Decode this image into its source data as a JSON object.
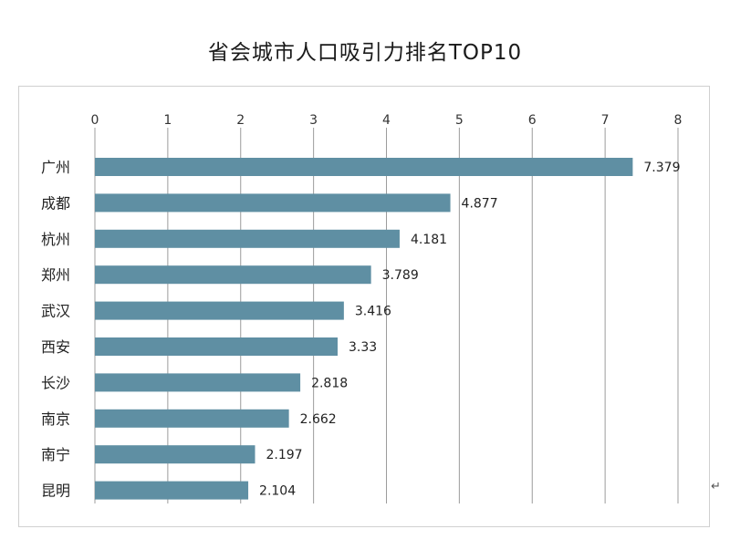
{
  "chart_data": {
    "type": "bar",
    "orientation": "horizontal",
    "title": "省会城市人口吸引力排名TOP10",
    "xlabel": "",
    "ylabel": "",
    "xlim": [
      0,
      8
    ],
    "x_ticks": [
      "0",
      "1",
      "2",
      "3",
      "4",
      "5",
      "6",
      "7",
      "8"
    ],
    "x_axis_position": "top",
    "grid": true,
    "legend": "none",
    "bar_color": "#5f8fa3",
    "categories": [
      "广州",
      "成都",
      "杭州",
      "郑州",
      "武汉",
      "西安",
      "长沙",
      "南京",
      "南宁",
      "昆明"
    ],
    "values": [
      7.379,
      4.877,
      4.181,
      3.789,
      3.416,
      3.33,
      2.818,
      2.662,
      2.197,
      2.104
    ],
    "value_labels": [
      "7.379",
      "4.877",
      "4.181",
      "3.789",
      "3.416",
      "3.33",
      "2.818",
      "2.662",
      "2.197",
      "2.104"
    ]
  },
  "ui": {
    "return_glyph": "↵"
  }
}
